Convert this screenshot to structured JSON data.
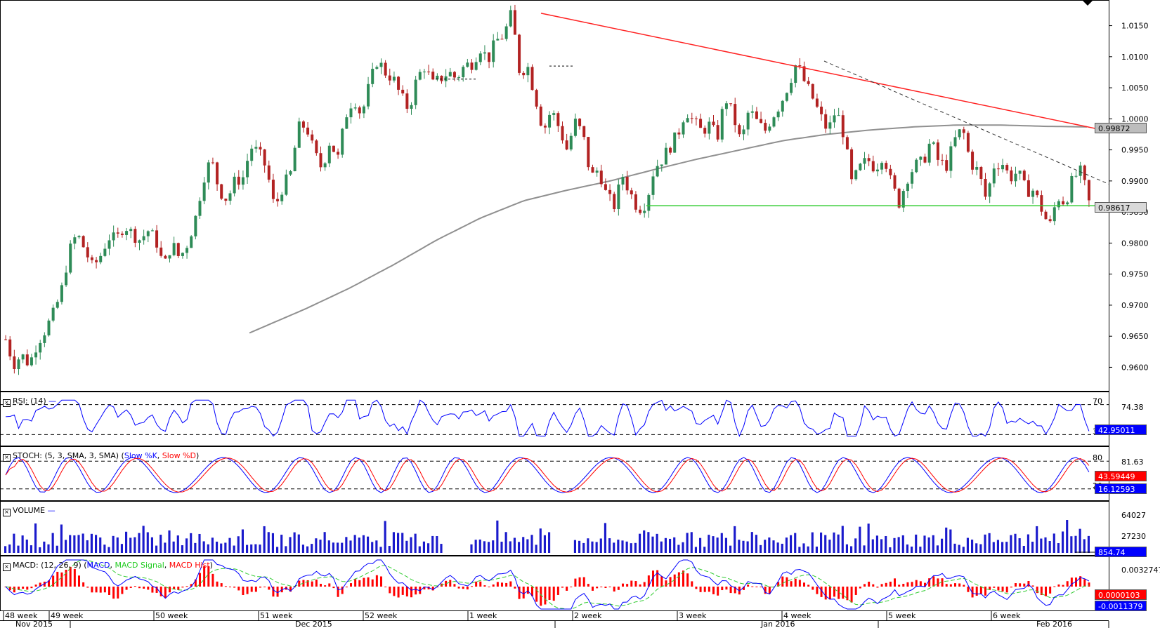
{
  "instrument_view": "candlestick chart with indicator panes",
  "price_panel": {
    "axis_ticks": [
      "1.0150",
      "1.0100",
      "1.0050",
      "1.0000",
      "0.9950",
      "0.9900",
      "0.9850",
      "0.9800",
      "0.9750",
      "0.9700",
      "0.9650",
      "0.9600"
    ],
    "ma_value_tag": "0.99872",
    "last_price_tag": "0.98617"
  },
  "rsi_panel": {
    "label": "RSI: (14)",
    "upper_level": "70",
    "lower_level": "30",
    "axis_max": "74.38",
    "value_tag": "42.95011"
  },
  "stoch_panel": {
    "label_prefix": "STOCH: (5, 3, SMA, 3, SMA)",
    "k_name": "Slow %K",
    "d_name": "Slow %D",
    "upper_level": "80",
    "lower_level": "20",
    "axis_max": "81.63",
    "d_value_tag": "43.59449",
    "k_value_tag": "16.12593"
  },
  "volume_panel": {
    "label": "VOLUME",
    "axis_ticks": [
      "64027",
      "27230"
    ],
    "value_tag": "854.74"
  },
  "macd_panel": {
    "label_prefix": "MACD: (12, 26, 9)",
    "macd_name": "MACD",
    "signal_name": "MACD Signal",
    "hist_name": "MACD Hist",
    "axis_max": "0.0032747",
    "hist_value_tag": "0.0000103",
    "macd_value_tag": "-0.0011379"
  },
  "time_axis": {
    "weeks": [
      "48 week",
      "49 week",
      "50 week",
      "51 week",
      "52 week",
      "1 week",
      "2 week",
      "3 week",
      "4 week",
      "5 week",
      "6 week"
    ],
    "months": [
      "Nov 2015",
      "Dec 2015",
      "Jan 2016",
      "Feb 2016"
    ]
  },
  "colors": {
    "bull_candle": "#2e8b57",
    "bear_candle": "#b22222",
    "trendline_red": "#ff2222",
    "support_green": "#33cc33",
    "ma_grey": "#909090",
    "indicator_blue": "#0000ff",
    "indicator_red": "#ff0000",
    "signal_green": "#33cc33",
    "volume_blue": "#1a1acc"
  },
  "chart_data": {
    "type": "candlestick",
    "y_range": [
      0.957,
      1.018
    ],
    "series_path": [
      0.9645,
      0.9605,
      0.962,
      0.9605,
      0.964,
      0.966,
      0.9685,
      0.972,
      0.9785,
      0.9815,
      0.979,
      0.976,
      0.978,
      0.981,
      0.9805,
      0.983,
      0.9815,
      0.9805,
      0.982,
      0.9805,
      0.976,
      0.98,
      0.9775,
      0.98,
      0.984,
      0.9905,
      0.9935,
      0.9885,
      0.987,
      0.99,
      0.9905,
      0.9955,
      0.9945,
      0.992,
      0.9855,
      0.989,
      0.991,
      0.9985,
      0.999,
      0.9945,
      0.992,
      0.9965,
      0.9935,
      1.0005,
      1.0035,
      1.0005,
      1.0055,
      1.0095,
      1.0075,
      1.0065,
      1.0035,
      1.0015,
      1.0065,
      1.0085,
      1.0055,
      1.0065,
      1.0075,
      1.0065,
      1.0085,
      1.009,
      1.0115,
      1.0095,
      1.0125,
      1.0135,
      1.017,
      1.0075,
      1.0085,
      1.0035,
      0.998,
      1.0015,
      0.9985,
      0.995,
      0.9995,
      0.9975,
      0.9905,
      0.992,
      0.9875,
      0.986,
      0.991,
      0.988,
      0.9855,
      0.9865,
      0.992,
      0.9935,
      0.9955,
      0.9975,
      1.0015,
      0.9995,
      0.998,
      0.999,
      0.997,
      1.0035,
      1.0005,
      0.996,
      1.0015,
      0.9995,
      0.998,
      1.0005,
      1.0025,
      1.0055,
      1.009,
      1.006,
      1.0035,
      1.0005,
      0.998,
      1.0015,
      0.9975,
      0.9895,
      0.992,
      0.9935,
      0.992,
      0.9945,
      0.9895,
      0.9865,
      0.9905,
      0.9925,
      0.993,
      0.9965,
      0.993,
      0.9925,
      0.9965,
      0.9985,
      0.993,
      0.9915,
      0.987,
      0.9925,
      0.993,
      0.9905,
      0.9915,
      0.9885,
      0.9885,
      0.9855,
      0.9825,
      0.9875,
      0.9865,
      0.9905,
      0.9915,
      0.9865
    ],
    "ma_200_path": [
      0.9515,
      0.9525,
      0.9548,
      0.9575,
      0.9605,
      0.9635,
      0.9665,
      0.9695,
      0.9728,
      0.9765,
      0.9805,
      0.984,
      0.9868,
      0.9885,
      0.99,
      0.9918,
      0.9935,
      0.995,
      0.9965,
      0.9975,
      0.9982,
      0.9987,
      0.999,
      0.999,
      0.9988,
      0.9987
    ],
    "red_trendline": {
      "from": [
        "1 week",
        1.017
      ],
      "to": [
        "Feb 2016",
        0.9987
      ]
    },
    "dashed_trendline": {
      "from": [
        "4 week",
        1.0093
      ],
      "to": [
        "Feb 2016",
        0.9895
      ]
    },
    "support_line": 0.986,
    "rsi_levels": [
      70,
      30
    ],
    "stoch_levels": [
      80,
      20
    ]
  }
}
